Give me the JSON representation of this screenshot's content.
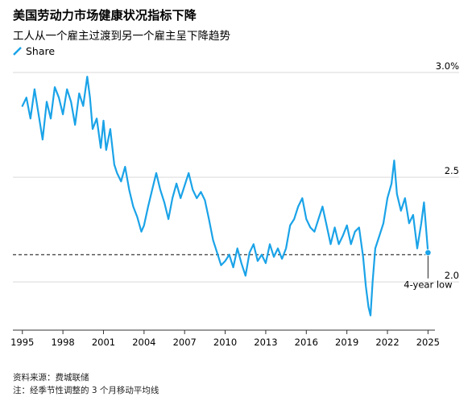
{
  "header": {
    "title": "美国劳动力市场健康状况指标下降",
    "subtitle": "工人从一个雇主过渡到另一个雇主呈下降趋势"
  },
  "legend": {
    "series_label": "Share"
  },
  "footer": {
    "source": "资料来源：费城联储",
    "note": "注：经季节性调整的 3 个月移动平均线"
  },
  "colors": {
    "line": "#1aa3e8",
    "grid": "#d9d9d9",
    "axis": "#333333",
    "text": "#000000"
  },
  "chart_data": {
    "type": "line",
    "title": "美国劳动力市场健康状况指标下降",
    "subtitle": "工人从一个雇主过渡到另一个雇主呈下降趋势",
    "xlabel": "",
    "ylabel": "",
    "xlim": [
      1994.3,
      2027.3
    ],
    "ylim": [
      1.77,
      3.05
    ],
    "y_ticks": [
      {
        "value": 3.0,
        "label": "3.0%"
      },
      {
        "value": 2.5,
        "label": "2.5"
      },
      {
        "value": 2.0,
        "label": "2.0"
      }
    ],
    "x_ticks": [
      {
        "value": 1995,
        "label": "1995"
      },
      {
        "value": 1998,
        "label": "1998"
      },
      {
        "value": 2001,
        "label": "2001"
      },
      {
        "value": 2004,
        "label": "2004"
      },
      {
        "value": 2007,
        "label": "2007"
      },
      {
        "value": 2010,
        "label": "2010"
      },
      {
        "value": 2013,
        "label": "2013"
      },
      {
        "value": 2016,
        "label": "2016"
      },
      {
        "value": 2019,
        "label": "2019"
      },
      {
        "value": 2022,
        "label": "2022"
      },
      {
        "value": 2025,
        "label": "2025"
      }
    ],
    "reference_line": {
      "value": 2.13,
      "style": "dashed"
    },
    "annotation": {
      "text": "4-year low",
      "x": 2025.0,
      "y": 2.14
    },
    "grid": "horizontal",
    "legend_position": "top-left",
    "series": [
      {
        "name": "Share",
        "color": "#1aa3e8",
        "points": [
          [
            1995.0,
            2.84
          ],
          [
            1995.3,
            2.88
          ],
          [
            1995.6,
            2.78
          ],
          [
            1995.9,
            2.92
          ],
          [
            1996.2,
            2.8
          ],
          [
            1996.5,
            2.68
          ],
          [
            1996.8,
            2.86
          ],
          [
            1997.1,
            2.78
          ],
          [
            1997.4,
            2.93
          ],
          [
            1997.7,
            2.88
          ],
          [
            1998.0,
            2.8
          ],
          [
            1998.3,
            2.92
          ],
          [
            1998.6,
            2.86
          ],
          [
            1998.9,
            2.75
          ],
          [
            1999.2,
            2.9
          ],
          [
            1999.5,
            2.84
          ],
          [
            1999.8,
            2.98
          ],
          [
            2000.0,
            2.88
          ],
          [
            2000.2,
            2.73
          ],
          [
            2000.5,
            2.78
          ],
          [
            2000.8,
            2.64
          ],
          [
            2001.0,
            2.77
          ],
          [
            2001.2,
            2.63
          ],
          [
            2001.5,
            2.73
          ],
          [
            2001.8,
            2.56
          ],
          [
            2002.0,
            2.52
          ],
          [
            2002.3,
            2.48
          ],
          [
            2002.6,
            2.55
          ],
          [
            2002.9,
            2.44
          ],
          [
            2003.2,
            2.36
          ],
          [
            2003.5,
            2.31
          ],
          [
            2003.8,
            2.24
          ],
          [
            2004.0,
            2.27
          ],
          [
            2004.3,
            2.36
          ],
          [
            2004.6,
            2.44
          ],
          [
            2004.9,
            2.52
          ],
          [
            2005.2,
            2.44
          ],
          [
            2005.5,
            2.38
          ],
          [
            2005.8,
            2.3
          ],
          [
            2006.1,
            2.4
          ],
          [
            2006.4,
            2.47
          ],
          [
            2006.7,
            2.4
          ],
          [
            2007.0,
            2.46
          ],
          [
            2007.3,
            2.52
          ],
          [
            2007.6,
            2.44
          ],
          [
            2007.9,
            2.4
          ],
          [
            2008.2,
            2.43
          ],
          [
            2008.5,
            2.39
          ],
          [
            2008.8,
            2.3
          ],
          [
            2009.1,
            2.2
          ],
          [
            2009.4,
            2.14
          ],
          [
            2009.7,
            2.08
          ],
          [
            2010.0,
            2.1
          ],
          [
            2010.3,
            2.13
          ],
          [
            2010.6,
            2.07
          ],
          [
            2010.9,
            2.16
          ],
          [
            2011.2,
            2.09
          ],
          [
            2011.5,
            2.03
          ],
          [
            2011.8,
            2.14
          ],
          [
            2012.1,
            2.18
          ],
          [
            2012.4,
            2.1
          ],
          [
            2012.7,
            2.13
          ],
          [
            2013.0,
            2.09
          ],
          [
            2013.3,
            2.18
          ],
          [
            2013.6,
            2.12
          ],
          [
            2013.9,
            2.16
          ],
          [
            2014.2,
            2.11
          ],
          [
            2014.5,
            2.16
          ],
          [
            2014.8,
            2.27
          ],
          [
            2015.1,
            2.3
          ],
          [
            2015.4,
            2.36
          ],
          [
            2015.7,
            2.4
          ],
          [
            2016.0,
            2.3
          ],
          [
            2016.3,
            2.26
          ],
          [
            2016.6,
            2.24
          ],
          [
            2016.9,
            2.3
          ],
          [
            2017.2,
            2.36
          ],
          [
            2017.5,
            2.27
          ],
          [
            2017.8,
            2.18
          ],
          [
            2018.1,
            2.26
          ],
          [
            2018.4,
            2.18
          ],
          [
            2018.7,
            2.22
          ],
          [
            2019.0,
            2.27
          ],
          [
            2019.3,
            2.18
          ],
          [
            2019.6,
            2.24
          ],
          [
            2019.9,
            2.26
          ],
          [
            2020.2,
            2.12
          ],
          [
            2020.4,
            1.98
          ],
          [
            2020.6,
            1.88
          ],
          [
            2020.75,
            1.84
          ],
          [
            2020.9,
            2.0
          ],
          [
            2021.1,
            2.16
          ],
          [
            2021.4,
            2.22
          ],
          [
            2021.7,
            2.28
          ],
          [
            2022.0,
            2.4
          ],
          [
            2022.3,
            2.47
          ],
          [
            2022.5,
            2.58
          ],
          [
            2022.7,
            2.42
          ],
          [
            2023.0,
            2.34
          ],
          [
            2023.3,
            2.4
          ],
          [
            2023.6,
            2.28
          ],
          [
            2023.9,
            2.32
          ],
          [
            2024.2,
            2.16
          ],
          [
            2024.5,
            2.28
          ],
          [
            2024.7,
            2.38
          ],
          [
            2024.85,
            2.26
          ],
          [
            2025.0,
            2.14
          ]
        ]
      }
    ]
  }
}
